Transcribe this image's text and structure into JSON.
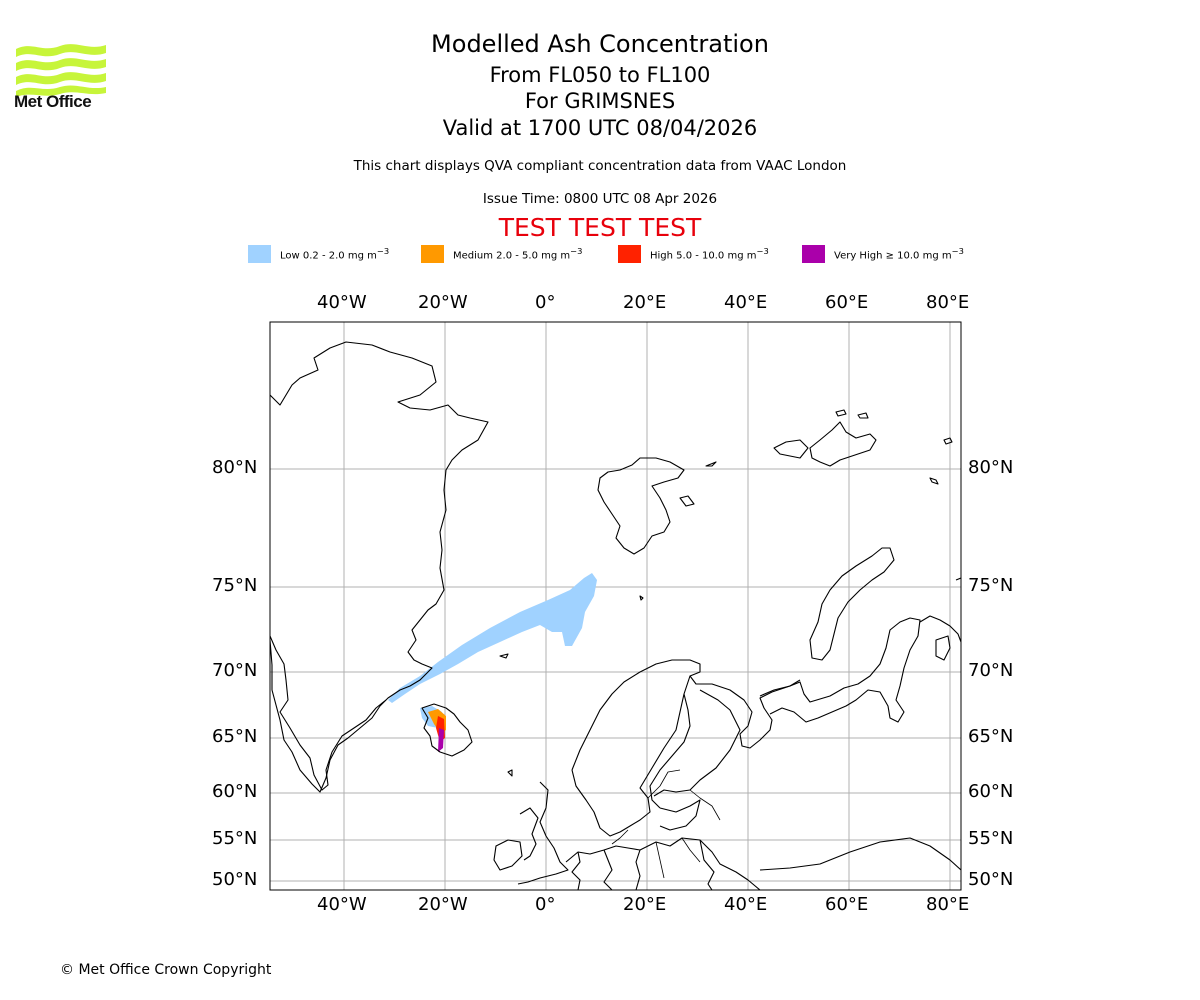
{
  "logo": {
    "name": "Met Office",
    "brand_color": "#c7f53a"
  },
  "title": {
    "main": "Modelled Ash Concentration",
    "levels": "From FL050 to FL100",
    "location": "For GRIMSNES",
    "valid": "Valid at 1700 UTC 08/04/2026"
  },
  "description": "This chart displays QVA compliant concentration data from VAAC London",
  "issue_time": "Issue Time: 0800 UTC 08 Apr 2026",
  "test_banner": "TEST TEST TEST",
  "legend": [
    {
      "label": "Low 0.2 - 2.0 mg m",
      "exp": "−3",
      "color": "#a0d2ff"
    },
    {
      "label": "Medium 2.0 - 5.0 mg m",
      "exp": "−3",
      "color": "#ff9900"
    },
    {
      "label": "High 5.0 - 10.0 mg m",
      "exp": "−3",
      "color": "#ff2200"
    },
    {
      "label": "Very High  ≥  10.0 mg m",
      "exp": "−3",
      "color": "#aa00aa"
    }
  ],
  "map": {
    "lon_labels": [
      "40°W",
      "20°W",
      "0°",
      "20°E",
      "40°E",
      "60°E",
      "80°E"
    ],
    "lat_labels": [
      "80°N",
      "75°N",
      "70°N",
      "65°N",
      "60°N",
      "55°N",
      "50°N"
    ]
  },
  "copyright": "© Met Office Crown Copyright"
}
